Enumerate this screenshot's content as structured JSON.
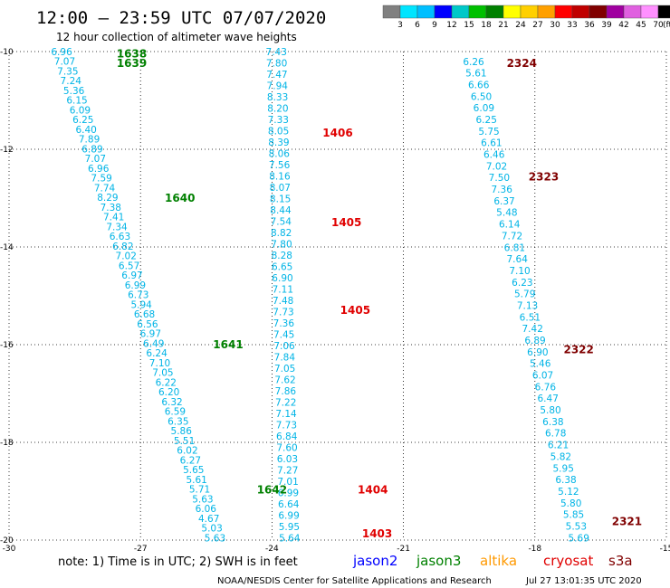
{
  "header": {
    "title": "12:00 – 23:59 UTC 07/07/2020",
    "subtitle": "12 hour collection of altimeter wave heights"
  },
  "colorbar": {
    "labels": [
      "3",
      "6",
      "9",
      "12",
      "15",
      "18",
      "21",
      "24",
      "27",
      "30",
      "33",
      "36",
      "39",
      "42",
      "45",
      "70"
    ],
    "unit": "(ft)",
    "colors": [
      "#808080",
      "#00e5ff",
      "#00bfff",
      "#0000ff",
      "#00c8c8",
      "#00c000",
      "#008000",
      "#ffff00",
      "#ffd000",
      "#ffa000",
      "#ff0000",
      "#c00000",
      "#800000",
      "#a000a0",
      "#e060e0",
      "#ff90ff",
      "#000000"
    ]
  },
  "note": "note: 1) Time is in UTC; 2) SWH is in feet",
  "legend": [
    {
      "label": "jason2",
      "color": "#0000ff"
    },
    {
      "label": "jason3",
      "color": "#008000"
    },
    {
      "label": "altika",
      "color": "#ff9900"
    },
    {
      "label": "cryosat",
      "color": "#e00000"
    },
    {
      "label": "s3a",
      "color": "#800000"
    }
  ],
  "footer": {
    "agency": "NOAA/NESDIS Center for Satellite Applications and Research",
    "timestamp": "Jul 27 13:01:35 UTC 2020"
  },
  "chart_data": {
    "type": "scatter",
    "xlim": [
      -30,
      -15
    ],
    "ylim": [
      -20,
      -10
    ],
    "x_ticks": [
      -30,
      -27,
      -24,
      -21,
      -18,
      -15
    ],
    "y_ticks": [
      -10,
      -12,
      -14,
      -16,
      -18,
      -20
    ],
    "grid": true,
    "value_color": "#00b4e6",
    "series": [
      {
        "name": "jason3",
        "color": "#008000",
        "start": [
          -28.8,
          -10.0
        ],
        "end": [
          -25.3,
          -19.95
        ],
        "values": [
          "6.96",
          "7.07",
          "7.35",
          "7.24",
          "5.36",
          "6.15",
          "6.09",
          "6.25",
          "6.40",
          "7.89",
          "6.89",
          "7.07",
          "6.96",
          "7.59",
          "7.74",
          "8.29",
          "7.38",
          "7.41",
          "7.34",
          "6.63",
          "6.82",
          "7.02",
          "6.57",
          "6.97",
          "6.99",
          "6.73",
          "5.94",
          "6.68",
          "6.56",
          "6.97",
          "6.49",
          "6.24",
          "7.10",
          "7.05",
          "6.22",
          "6.20",
          "6.32",
          "6.59",
          "6.35",
          "5.86",
          "5.51",
          "6.02",
          "6.27",
          "5.65",
          "5.61",
          "5.71",
          "5.63",
          "6.06",
          "4.67",
          "5.03",
          "5.63"
        ],
        "times": [
          {
            "label": "1638",
            "x": -27.2,
            "y": -10.03
          },
          {
            "label": "1639",
            "x": -27.2,
            "y": -10.22
          },
          {
            "label": "1640",
            "x": -26.1,
            "y": -12.98
          },
          {
            "label": "1641",
            "x": -25.0,
            "y": -15.98
          },
          {
            "label": "1642",
            "x": -24.0,
            "y": -18.95
          }
        ]
      },
      {
        "name": "cryosat",
        "color": "#e00000",
        "start": [
          -23.9,
          -10.0
        ],
        "end": [
          -23.6,
          -19.95
        ],
        "values": [
          "7.43",
          "7.80",
          "7.47",
          "7.94",
          "8.33",
          "8.20",
          "7.33",
          "8.05",
          "8.39",
          "8.06",
          "7.56",
          "8.16",
          "8.07",
          "8.15",
          "8.44",
          "7.54",
          "8.82",
          "7.80",
          "8.28",
          "6.65",
          "6.90",
          "7.11",
          "7.48",
          "7.73",
          "7.36",
          "7.45",
          "7.06",
          "7.84",
          "7.05",
          "7.62",
          "7.86",
          "7.22",
          "7.14",
          "7.73",
          "6.84",
          "7.60",
          "6.03",
          "7.27",
          "7.01",
          "6.99",
          "6.64",
          "6.99",
          "5.95",
          "5.64"
        ],
        "times": [
          {
            "label": "1406",
            "x": -22.5,
            "y": -11.65
          },
          {
            "label": "1405",
            "x": -22.3,
            "y": -13.48
          },
          {
            "label": "1405",
            "x": -22.1,
            "y": -15.28
          },
          {
            "label": "1404",
            "x": -21.7,
            "y": -18.95
          },
          {
            "label": "1403",
            "x": -21.6,
            "y": -19.85
          }
        ]
      },
      {
        "name": "s3a",
        "color": "#800000",
        "start": [
          -19.4,
          -10.2
        ],
        "end": [
          -17.0,
          -19.95
        ],
        "values": [
          "6.26",
          "5.61",
          "6.66",
          "6.50",
          "6.09",
          "6.25",
          "5.75",
          "6.61",
          "6.46",
          "7.02",
          "7.50",
          "7.36",
          "6.37",
          "5.48",
          "6.14",
          "7.72",
          "6.81",
          "7.64",
          "7.10",
          "6.23",
          "5.79",
          "7.13",
          "6.51",
          "7.42",
          "6.89",
          "6.90",
          "5.46",
          "6.07",
          "6.76",
          "6.47",
          "5.80",
          "6.38",
          "6.78",
          "6.21",
          "5.82",
          "5.95",
          "6.38",
          "5.12",
          "5.80",
          "5.85",
          "5.53",
          "5.69"
        ],
        "times": [
          {
            "label": "2324",
            "x": -18.3,
            "y": -10.22
          },
          {
            "label": "2323",
            "x": -17.8,
            "y": -12.55
          },
          {
            "label": "2322",
            "x": -17.0,
            "y": -16.08
          },
          {
            "label": "2321",
            "x": -15.9,
            "y": -19.6
          }
        ]
      }
    ]
  }
}
